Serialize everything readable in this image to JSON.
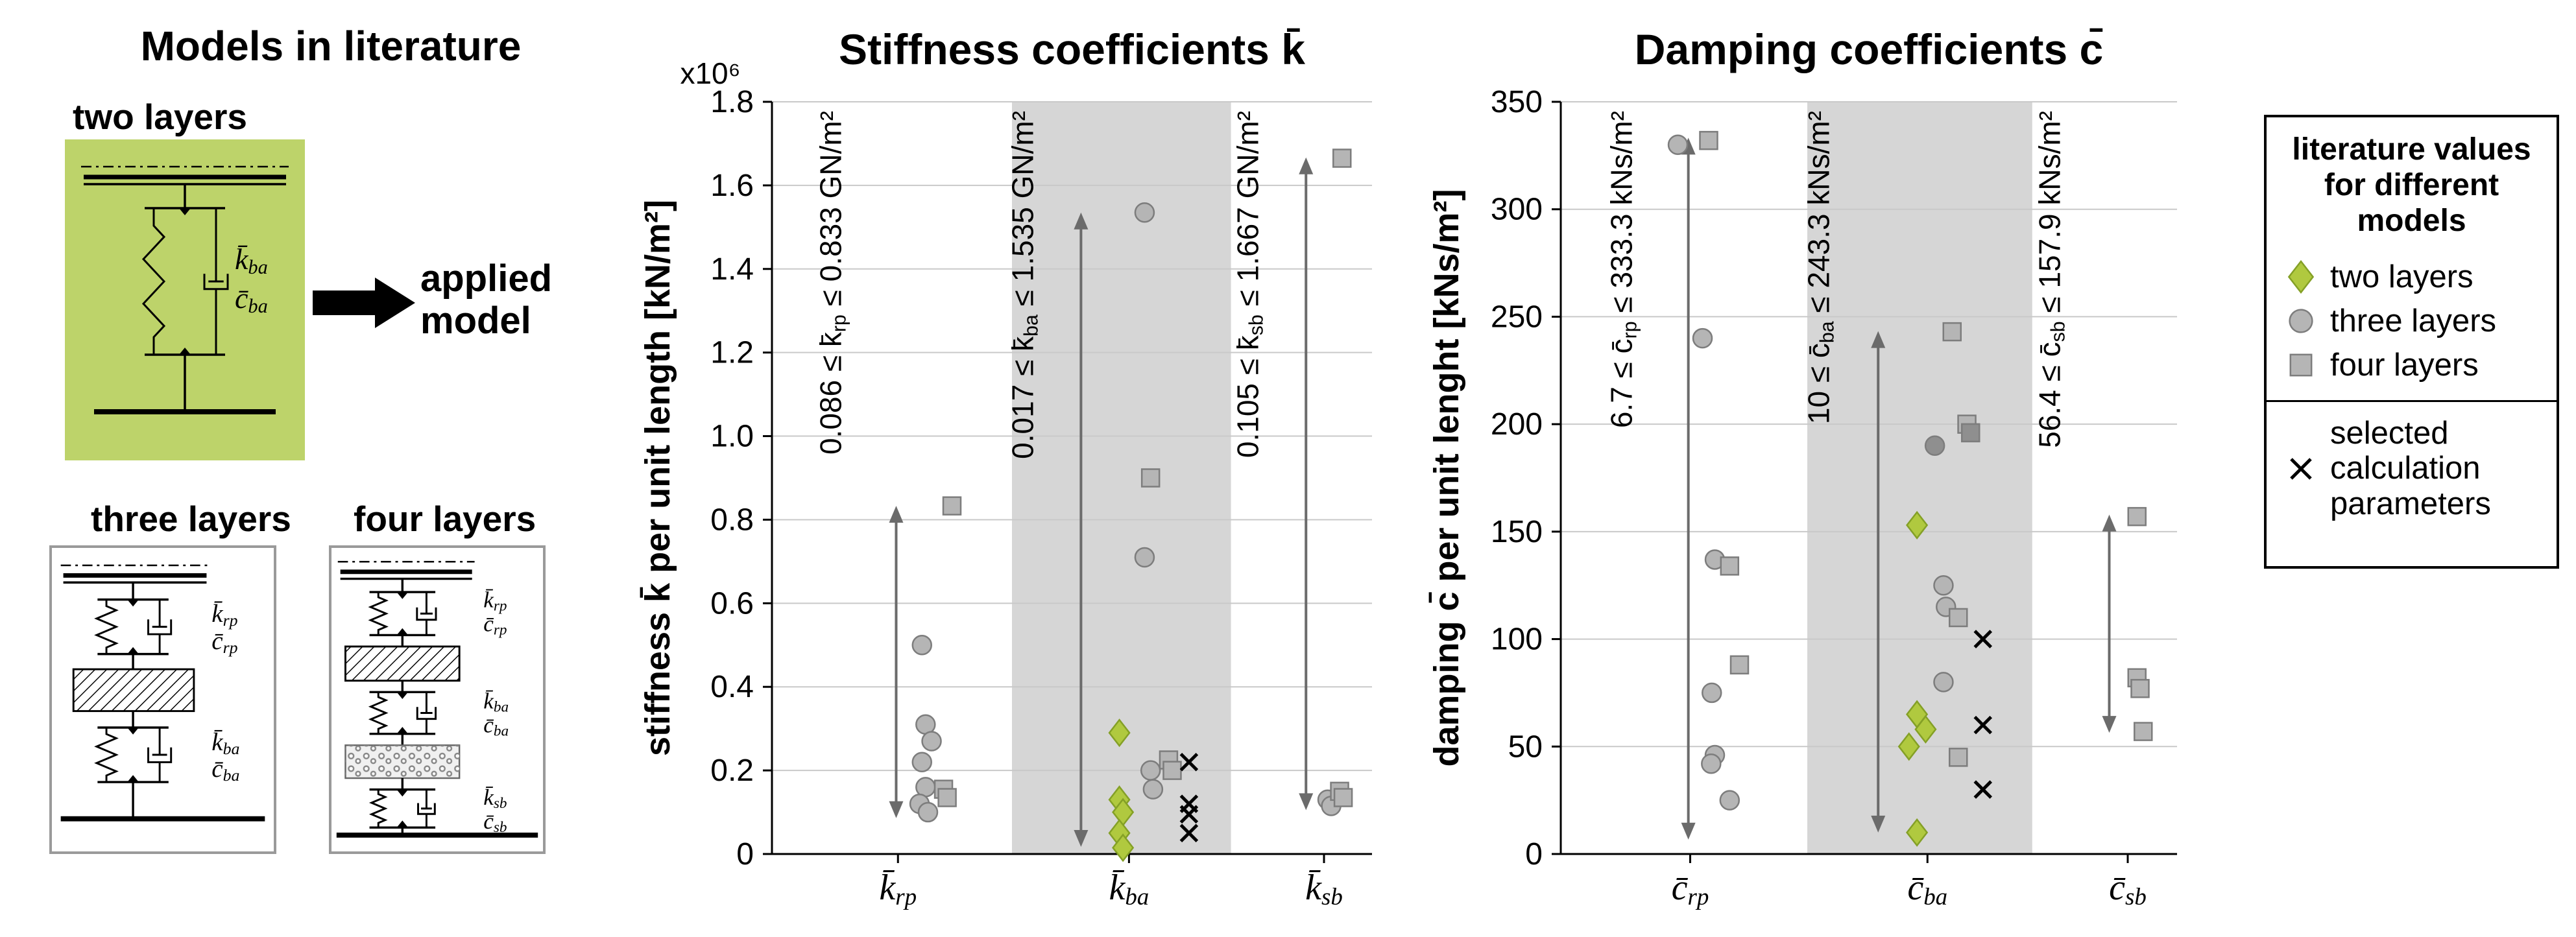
{
  "colors": {
    "green_box": "#bdd36a",
    "green": "#b0c93f",
    "green_edge": "#84a026",
    "gray": "#b5b5b5",
    "gray_dark": "#8f8f8f",
    "marker_edge": "#7d7d7d",
    "band": "#d6d6d6",
    "grid": "#c9c9c9",
    "arrow": "#6b6b6b",
    "annotation_text": "#333333"
  },
  "left_panel": {
    "title": "Models in literature",
    "applied_model": "applied model",
    "two_layers": {
      "label": "two layers",
      "params": [
        "k̄_{ba}",
        "c̄_{ba}"
      ]
    },
    "three_layers": {
      "label": "three layers",
      "params": [
        "k̄_{rp}",
        "c̄_{rp}",
        "k̄_{ba}",
        "c̄_{ba}"
      ]
    },
    "four_layers": {
      "label": "four layers",
      "params": [
        "k̄_{rp}",
        "c̄_{rp}",
        "k̄_{ba}",
        "c̄_{ba}",
        "k̄_{sb}",
        "c̄_{sb}"
      ]
    }
  },
  "legend": {
    "title": "literature values for different models",
    "items": [
      {
        "marker": "diamond",
        "label": "two layers"
      },
      {
        "marker": "circle",
        "label": "three layers"
      },
      {
        "marker": "square",
        "label": "four layers"
      }
    ],
    "selected": {
      "marker": "x",
      "label": "selected calculation parameters"
    }
  },
  "chart_data": [
    {
      "type": "scatter",
      "title": "Stiffness coefficients k̄",
      "ylabel": "stiffness k̄ per unit length [kN/m²]",
      "y_multiplier": "x10⁶",
      "ylim": [
        0,
        1.8
      ],
      "grid": true,
      "yticks": [
        {
          "v": 0,
          "label": "0"
        },
        {
          "v": 0.2,
          "label": "0.2"
        },
        {
          "v": 0.4,
          "label": "0.4"
        },
        {
          "v": 0.6,
          "label": "0.6"
        },
        {
          "v": 0.8,
          "label": "0.8"
        },
        {
          "v": 1.0,
          "label": "1.0"
        },
        {
          "v": 1.2,
          "label": "1.2"
        },
        {
          "v": 1.4,
          "label": "1.4"
        },
        {
          "v": 1.6,
          "label": "1.6"
        },
        {
          "v": 1.8,
          "label": "1.8"
        }
      ],
      "categories": [
        {
          "label": "k̄_{rp}",
          "range_min": 0.086,
          "range_max": 0.833,
          "annotation": "0.086 ≤ k̄_{rp} ≤ 0.833 GN/m²"
        },
        {
          "label": "k̄_{ba}",
          "range_min": 0.017,
          "range_max": 1.535,
          "annotation": "0.017 ≤ k̄_{ba} ≤ 1.535 GN/m²",
          "highlight": true
        },
        {
          "label": "k̄_{sb}",
          "range_min": 0.105,
          "range_max": 1.667,
          "annotation": "0.105 ≤ k̄_{sb} ≤ 1.667 GN/m²"
        }
      ],
      "series": [
        {
          "name": "two layers",
          "marker": "diamond",
          "points": [
            [
              1,
              -0.016,
              0.29
            ],
            [
              1,
              -0.016,
              0.13
            ],
            [
              1,
              -0.01,
              0.1
            ],
            [
              1,
              -0.016,
              0.05
            ],
            [
              1,
              -0.01,
              0.015
            ]
          ]
        },
        {
          "name": "three layers",
          "marker": "circle",
          "points": [
            [
              0,
              0.04,
              0.5
            ],
            [
              0,
              0.046,
              0.31
            ],
            [
              0,
              0.056,
              0.27
            ],
            [
              0,
              0.04,
              0.22
            ],
            [
              0,
              0.046,
              0.16
            ],
            [
              0,
              0.036,
              0.12
            ],
            [
              0,
              0.05,
              0.1
            ],
            [
              1,
              0.026,
              1.535
            ],
            [
              1,
              0.026,
              0.71
            ],
            [
              1,
              0.036,
              0.2
            ],
            [
              1,
              0.04,
              0.155
            ],
            [
              2,
              0.006,
              0.13
            ],
            [
              2,
              0.012,
              0.115
            ]
          ]
        },
        {
          "name": "four layers",
          "marker": "square",
          "points": [
            [
              0,
              0.09,
              0.833
            ],
            [
              0,
              0.076,
              0.155
            ],
            [
              0,
              0.082,
              0.135
            ],
            [
              1,
              0.036,
              0.9
            ],
            [
              1,
              0.066,
              0.225
            ],
            [
              1,
              0.072,
              0.2
            ],
            [
              2,
              0.03,
              1.665
            ],
            [
              2,
              0.026,
              0.15
            ],
            [
              2,
              0.032,
              0.135
            ]
          ]
        },
        {
          "name": "selected calculation parameters",
          "marker": "x",
          "points": [
            [
              1,
              0.1,
              0.22
            ],
            [
              1,
              0.1,
              0.12
            ],
            [
              1,
              0.1,
              0.095
            ],
            [
              1,
              0.1,
              0.05
            ]
          ]
        }
      ]
    },
    {
      "type": "scatter",
      "title": "Damping coefficients c̄",
      "ylabel": "damping c̄ per unit lenght [kNs/m²]",
      "ylim": [
        0,
        350
      ],
      "grid": true,
      "yticks": [
        {
          "v": 0,
          "label": "0"
        },
        {
          "v": 50,
          "label": "50"
        },
        {
          "v": 100,
          "label": "100"
        },
        {
          "v": 150,
          "label": "150"
        },
        {
          "v": 200,
          "label": "200"
        },
        {
          "v": 250,
          "label": "250"
        },
        {
          "v": 300,
          "label": "300"
        },
        {
          "v": 350,
          "label": "350"
        }
      ],
      "categories": [
        {
          "label": "c̄_{rp}",
          "range_min": 6.7,
          "range_max": 333.3,
          "annotation": "6.7 ≤ c̄_{rp} ≤ 333.3 kNs/m²"
        },
        {
          "label": "c̄_{ba}",
          "range_min": 10,
          "range_max": 243.3,
          "annotation": "10 ≤ c̄_{ba} ≤ 243.3 kNs/m²",
          "highlight": true
        },
        {
          "label": "c̄_{sb}",
          "range_min": 56.4,
          "range_max": 157.9,
          "annotation": "56.4 ≤ c̄_{sb} ≤ 157.9 kNs/m²"
        }
      ],
      "series": [
        {
          "name": "two layers",
          "marker": "diamond",
          "points": [
            [
              1,
              -0.017,
              153
            ],
            [
              1,
              -0.017,
              65
            ],
            [
              1,
              -0.003,
              58
            ],
            [
              1,
              -0.03,
              50
            ],
            [
              1,
              -0.017,
              10
            ]
          ]
        },
        {
          "name": "three layers",
          "marker": "circle",
          "points": [
            [
              0,
              -0.02,
              330
            ],
            [
              0,
              0.02,
              240
            ],
            [
              0,
              0.04,
              137
            ],
            [
              0,
              0.035,
              75
            ],
            [
              0,
              0.04,
              46
            ],
            [
              0,
              0.034,
              42
            ],
            [
              0,
              0.064,
              25
            ],
            [
              1,
              0.012,
              190,
              1
            ],
            [
              1,
              0.026,
              125
            ],
            [
              1,
              0.03,
              115
            ],
            [
              1,
              0.026,
              80
            ]
          ]
        },
        {
          "name": "four layers",
          "marker": "square",
          "points": [
            [
              0,
              0.03,
              332
            ],
            [
              0,
              0.064,
              134
            ],
            [
              0,
              0.08,
              88
            ],
            [
              1,
              0.04,
              243
            ],
            [
              1,
              0.064,
              200
            ],
            [
              1,
              0.07,
              196,
              1
            ],
            [
              1,
              0.05,
              110
            ],
            [
              1,
              0.05,
              45
            ],
            [
              2,
              0.015,
              157
            ],
            [
              2,
              0.015,
              82
            ],
            [
              2,
              0.02,
              77
            ],
            [
              2,
              0.025,
              57
            ]
          ]
        },
        {
          "name": "selected calculation parameters",
          "marker": "x",
          "points": [
            [
              1,
              0.09,
              100
            ],
            [
              1,
              0.09,
              60
            ],
            [
              1,
              0.09,
              30
            ]
          ]
        }
      ]
    }
  ]
}
